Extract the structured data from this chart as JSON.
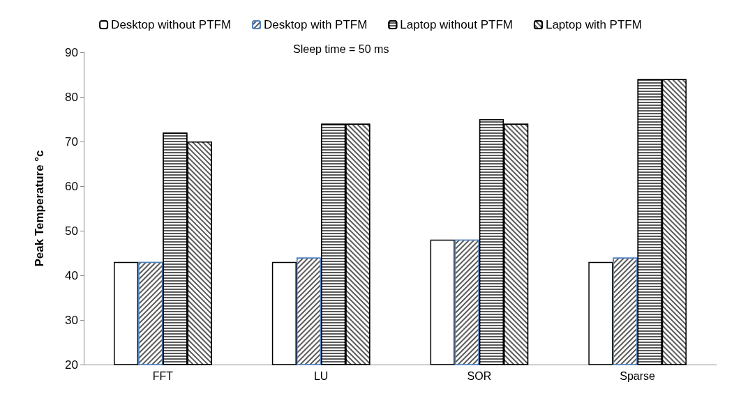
{
  "chart_data": {
    "type": "bar",
    "ylabel": "Peak Temperature °c",
    "annotations": [
      "Sleep time = 50 ms"
    ],
    "categories": [
      "FFT",
      "LU",
      "SOR",
      "Sparse"
    ],
    "series": [
      {
        "name": "Desktop without PTFM",
        "color": "#ffffff",
        "values": [
          43,
          43,
          48,
          43
        ]
      },
      {
        "name": "Desktop with PTFM",
        "color": "#595959",
        "values": [
          43,
          44,
          48,
          44
        ]
      },
      {
        "name": "Laptop without PTFM",
        "color": "#595959",
        "values": [
          72,
          74,
          75,
          84
        ]
      },
      {
        "name": "Laptop with PTFM",
        "color": "#595959",
        "values": [
          70,
          74,
          74,
          84
        ]
      }
    ],
    "ylim": [
      20,
      90
    ],
    "yticks": [
      20,
      30,
      40,
      50,
      60,
      70,
      80,
      90
    ],
    "grid": false,
    "legend": "top"
  }
}
